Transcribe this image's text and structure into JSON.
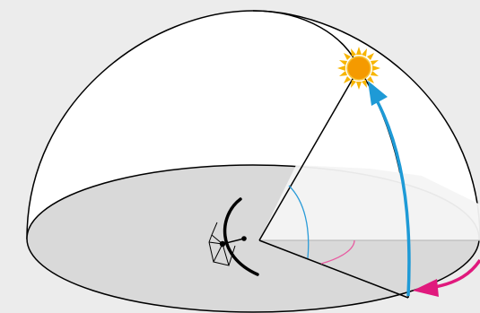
{
  "colors": {
    "background": "#ececec",
    "dome_fill": "#ffffff",
    "ground_fill": "#d9d9d9",
    "sunlit_plane": "#f4f4f4",
    "outline": "#000000",
    "altitude_arrow": "#1e9ad6",
    "azimuth_arrow": "#e0197d",
    "altitude_arc": "#2a9bd8",
    "azimuth_arc": "#e85aa0",
    "sun_core": "#f59a00",
    "sun_rays": "#f7b500"
  },
  "icons": {
    "sun": "sun-icon",
    "antenna": "parabolic-antenna-icon"
  }
}
